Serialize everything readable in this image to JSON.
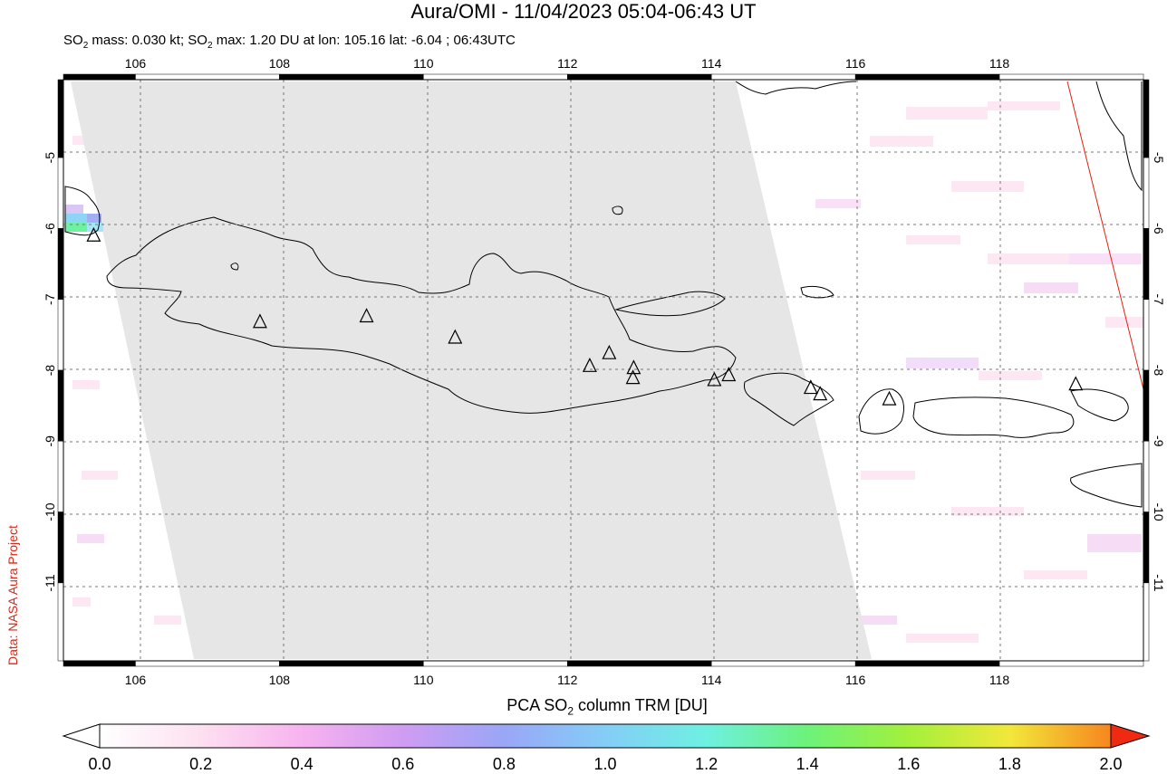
{
  "header": {
    "title": "Aura/OMI - 11/04/2023 05:04-06:43 UT",
    "stats_line": {
      "mass_prefix": "SO",
      "mass_sub": "2",
      "mass_text": " mass: 0.030 kt; SO",
      "max_sub": "2",
      "max_text": " max: 1.20 DU at lon: 105.16 lat: -6.04 ; 06:43UTC"
    }
  },
  "credit": "Data: NASA Aura Project",
  "map": {
    "lon_range": [
      105,
      120
    ],
    "lat_range": [
      -12.1,
      -3.9
    ],
    "lon_ticks": [
      "106",
      "108",
      "110",
      "112",
      "114",
      "116",
      "118"
    ],
    "lat_ticks": [
      "-5",
      "-6",
      "-7",
      "-8",
      "-9",
      "-10",
      "-11"
    ],
    "volcano_icon": "triangle-volcano-icon"
  },
  "colorbar": {
    "label_prefix": "PCA SO",
    "label_sub": "2",
    "label_suffix": " column TRM [DU]",
    "ticks": [
      "0.0",
      "0.2",
      "0.4",
      "0.6",
      "0.8",
      "1.0",
      "1.2",
      "1.4",
      "1.6",
      "1.8",
      "2.0"
    ],
    "colors": [
      "#ffffff",
      "#fde0f0",
      "#f7b3ef",
      "#cf9cf2",
      "#9aa6f7",
      "#84cdf7",
      "#6ef0e2",
      "#6cf27a",
      "#a4f03c",
      "#f2e83a",
      "#f7861f",
      "#f02a10"
    ]
  }
}
